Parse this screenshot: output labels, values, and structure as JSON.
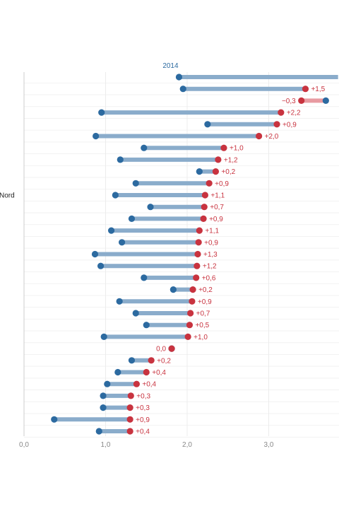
{
  "chart_data": {
    "type": "dumbbell",
    "series": [
      {
        "name": "2014",
        "color": "#2c6aa0"
      },
      {
        "name": "",
        "color": "#c8333f"
      }
    ],
    "colors": {
      "start": "#2c6aa0",
      "end": "#c8333f",
      "bar_increase": "#8aaccb",
      "bar_decrease": "#e89aa1",
      "grid": "#ececec",
      "axis": "#cccccc"
    },
    "x_ticks": [
      "0,0",
      "1,0",
      "2,0",
      "3,0"
    ],
    "x_tick_values": [
      0,
      1,
      2,
      3
    ],
    "xlim": [
      0,
      3.85
    ],
    "grid": true,
    "rows": [
      {
        "label": "",
        "start": 1.9,
        "end": 3.85,
        "delta": ""
      },
      {
        "label": "",
        "start": 1.95,
        "end": 3.45,
        "delta": "+1,5"
      },
      {
        "label": "",
        "start": 3.7,
        "end": 3.4,
        "delta": "−0,3"
      },
      {
        "label": "",
        "start": 0.95,
        "end": 3.15,
        "delta": "+2,2"
      },
      {
        "label": "",
        "start": 2.25,
        "end": 3.1,
        "delta": "+0,9"
      },
      {
        "label": "",
        "start": 0.88,
        "end": 2.88,
        "delta": "+2,0"
      },
      {
        "label": "",
        "start": 1.47,
        "end": 2.45,
        "delta": "+1,0"
      },
      {
        "label": "",
        "start": 1.18,
        "end": 2.38,
        "delta": "+1,2"
      },
      {
        "label": "",
        "start": 2.15,
        "end": 2.35,
        "delta": "+0,2"
      },
      {
        "label": "",
        "start": 1.37,
        "end": 2.27,
        "delta": "+0,9"
      },
      {
        "label": "Nord",
        "start": 1.12,
        "end": 2.22,
        "delta": "+1,1"
      },
      {
        "label": "",
        "start": 1.55,
        "end": 2.21,
        "delta": "+0,7"
      },
      {
        "label": "",
        "start": 1.32,
        "end": 2.2,
        "delta": "+0,9"
      },
      {
        "label": "",
        "start": 1.07,
        "end": 2.15,
        "delta": "+1,1"
      },
      {
        "label": "",
        "start": 1.2,
        "end": 2.14,
        "delta": "+0,9"
      },
      {
        "label": "",
        "start": 0.87,
        "end": 2.13,
        "delta": "+1,3"
      },
      {
        "label": "",
        "start": 0.94,
        "end": 2.12,
        "delta": "+1,2"
      },
      {
        "label": "",
        "start": 1.47,
        "end": 2.11,
        "delta": "+0,6"
      },
      {
        "label": "",
        "start": 1.83,
        "end": 2.07,
        "delta": "+0,2"
      },
      {
        "label": "",
        "start": 1.17,
        "end": 2.06,
        "delta": "+0,9"
      },
      {
        "label": "",
        "start": 1.37,
        "end": 2.04,
        "delta": "+0,7"
      },
      {
        "label": "",
        "start": 1.5,
        "end": 2.03,
        "delta": "+0,5"
      },
      {
        "label": "",
        "start": 0.98,
        "end": 2.01,
        "delta": "+1,0"
      },
      {
        "label": "",
        "start": 1.81,
        "end": 1.81,
        "delta": "0,0"
      },
      {
        "label": "",
        "start": 1.32,
        "end": 1.56,
        "delta": "+0,2"
      },
      {
        "label": "",
        "start": 1.15,
        "end": 1.5,
        "delta": "+0,4"
      },
      {
        "label": "",
        "start": 1.02,
        "end": 1.38,
        "delta": "+0,4"
      },
      {
        "label": "",
        "start": 0.97,
        "end": 1.31,
        "delta": "+0,3"
      },
      {
        "label": "",
        "start": 0.97,
        "end": 1.3,
        "delta": "+0,3"
      },
      {
        "label": "",
        "start": 0.37,
        "end": 1.3,
        "delta": "+0,9"
      },
      {
        "label": "",
        "start": 0.92,
        "end": 1.3,
        "delta": "+0,4"
      }
    ]
  }
}
